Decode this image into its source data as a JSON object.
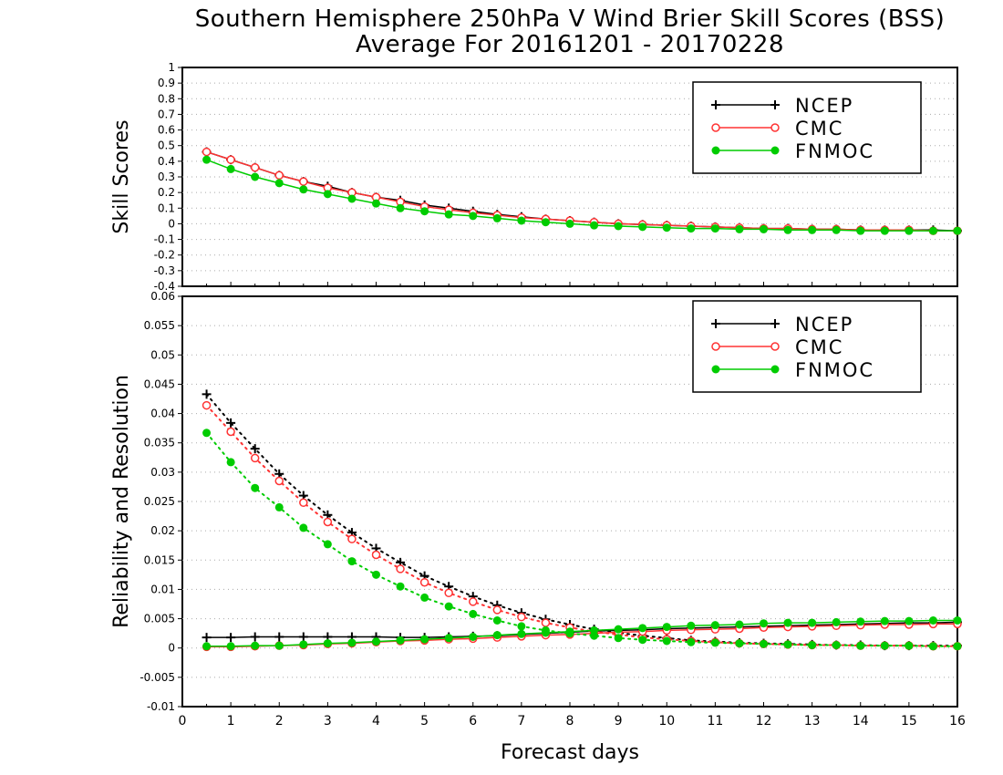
{
  "title_line1": "Southern Hemisphere 250hPa V Wind Brier Skill Scores (BSS)",
  "title_line2": "Average For 20161201 - 20170228",
  "chart_data": [
    {
      "type": "line",
      "ylabel": "Skill Scores",
      "xlabel": "",
      "xlim": [
        0,
        16
      ],
      "ylim": [
        -0.4,
        1
      ],
      "y_ticks": [
        1,
        0.9,
        0.8,
        0.7,
        0.6,
        0.5,
        0.4,
        0.3,
        0.2,
        0.1,
        0,
        -0.1,
        -0.2,
        -0.3,
        -0.4
      ],
      "grid": true,
      "legend_position": "top-right",
      "x": [
        0.5,
        1,
        1.5,
        2,
        2.5,
        3,
        3.5,
        4,
        4.5,
        5,
        5.5,
        6,
        6.5,
        7,
        7.5,
        8,
        8.5,
        9,
        9.5,
        10,
        10.5,
        11,
        11.5,
        12,
        12.5,
        13,
        13.5,
        14,
        14.5,
        15,
        15.5,
        16
      ],
      "series": [
        {
          "name": "NCEP",
          "color": "#000000",
          "marker": "plus",
          "style": "solid",
          "values": [
            0.46,
            0.41,
            0.36,
            0.31,
            0.27,
            0.24,
            0.2,
            0.17,
            0.15,
            0.12,
            0.1,
            0.08,
            0.06,
            0.045,
            0.03,
            0.02,
            0.01,
            0.0,
            -0.005,
            -0.01,
            -0.015,
            -0.02,
            -0.025,
            -0.03,
            -0.03,
            -0.035,
            -0.035,
            -0.04,
            -0.04,
            -0.04,
            -0.04,
            -0.045
          ]
        },
        {
          "name": "CMC",
          "color": "#ff3333",
          "marker": "open-circle",
          "style": "solid",
          "values": [
            0.46,
            0.41,
            0.36,
            0.31,
            0.27,
            0.23,
            0.2,
            0.17,
            0.14,
            0.11,
            0.09,
            0.07,
            0.055,
            0.04,
            0.03,
            0.02,
            0.01,
            0.0,
            -0.005,
            -0.01,
            -0.015,
            -0.02,
            -0.025,
            -0.03,
            -0.03,
            -0.035,
            -0.035,
            -0.04,
            -0.04,
            -0.04,
            -0.045,
            -0.045
          ]
        },
        {
          "name": "FNMOC",
          "color": "#00cc00",
          "marker": "filled-circle",
          "style": "solid",
          "values": [
            0.41,
            0.35,
            0.3,
            0.26,
            0.22,
            0.19,
            0.16,
            0.13,
            0.1,
            0.08,
            0.06,
            0.05,
            0.035,
            0.02,
            0.01,
            0.0,
            -0.01,
            -0.015,
            -0.02,
            -0.025,
            -0.03,
            -0.03,
            -0.035,
            -0.035,
            -0.04,
            -0.04,
            -0.04,
            -0.045,
            -0.045,
            -0.045,
            -0.045,
            -0.045
          ]
        }
      ]
    },
    {
      "type": "line",
      "ylabel": "Reliability and Resolution",
      "xlabel": "Forecast days",
      "xlim": [
        0,
        16
      ],
      "ylim": [
        -0.01,
        0.06
      ],
      "y_ticks": [
        0.06,
        0.055,
        0.05,
        0.045,
        0.04,
        0.035,
        0.03,
        0.025,
        0.02,
        0.015,
        0.01,
        0.005,
        0,
        -0.005,
        -0.01
      ],
      "x_ticks": [
        0,
        1,
        2,
        3,
        4,
        5,
        6,
        7,
        8,
        9,
        10,
        11,
        12,
        13,
        14,
        15,
        16
      ],
      "grid": true,
      "legend_position": "top-right",
      "x": [
        0.5,
        1,
        1.5,
        2,
        2.5,
        3,
        3.5,
        4,
        4.5,
        5,
        5.5,
        6,
        6.5,
        7,
        7.5,
        8,
        8.5,
        9,
        9.5,
        10,
        10.5,
        11,
        11.5,
        12,
        12.5,
        13,
        13.5,
        14,
        14.5,
        15,
        15.5,
        16
      ],
      "series": [
        {
          "name": "NCEP",
          "color": "#000000",
          "marker": "plus",
          "style": "dotted",
          "values": [
            0.0433,
            0.0384,
            0.034,
            0.0297,
            0.026,
            0.0227,
            0.0197,
            0.017,
            0.0146,
            0.0123,
            0.0105,
            0.0088,
            0.0073,
            0.006,
            0.0049,
            0.004,
            0.0032,
            0.0026,
            0.0021,
            0.0017,
            0.0013,
            0.0011,
            0.0009,
            0.0008,
            0.0007,
            0.0006,
            0.0005,
            0.0005,
            0.0004,
            0.0004,
            0.0004,
            0.0004
          ]
        },
        {
          "name": "NCEP",
          "color": "#000000",
          "marker": "plus",
          "style": "solid",
          "values": [
            0.0018,
            0.0018,
            0.0019,
            0.0019,
            0.0019,
            0.0019,
            0.0019,
            0.0019,
            0.0018,
            0.0018,
            0.0019,
            0.002,
            0.0021,
            0.0023,
            0.0025,
            0.0027,
            0.0029,
            0.003,
            0.0031,
            0.0033,
            0.0034,
            0.0035,
            0.0036,
            0.0037,
            0.0038,
            0.0039,
            0.004,
            0.0041,
            0.0042,
            0.0043,
            0.0043,
            0.0044
          ]
        },
        {
          "name": "CMC",
          "color": "#ff3333",
          "marker": "open-circle",
          "style": "dotted",
          "values": [
            0.0414,
            0.0369,
            0.0324,
            0.0285,
            0.0248,
            0.0215,
            0.0186,
            0.0159,
            0.0135,
            0.0112,
            0.0094,
            0.0079,
            0.0065,
            0.0053,
            0.0043,
            0.0035,
            0.0028,
            0.0023,
            0.0018,
            0.0015,
            0.0012,
            0.001,
            0.0008,
            0.0007,
            0.0006,
            0.0005,
            0.0005,
            0.0004,
            0.0004,
            0.0004,
            0.0003,
            0.0003
          ]
        },
        {
          "name": "CMC",
          "color": "#ff3333",
          "marker": "open-circle",
          "style": "solid",
          "values": [
            0.0002,
            0.0002,
            0.0003,
            0.0004,
            0.0005,
            0.0007,
            0.0008,
            0.001,
            0.0012,
            0.0013,
            0.0015,
            0.0016,
            0.0018,
            0.002,
            0.0022,
            0.0023,
            0.0025,
            0.0027,
            0.0028,
            0.003,
            0.0031,
            0.0032,
            0.0033,
            0.0035,
            0.0036,
            0.0037,
            0.0038,
            0.0039,
            0.004,
            0.004,
            0.0041,
            0.0041
          ]
        },
        {
          "name": "FNMOC",
          "color": "#00cc00",
          "marker": "filled-circle",
          "style": "dotted",
          "values": [
            0.0367,
            0.0317,
            0.0273,
            0.024,
            0.0205,
            0.0177,
            0.0148,
            0.0125,
            0.0105,
            0.0086,
            0.0071,
            0.0058,
            0.0047,
            0.0037,
            0.003,
            0.0025,
            0.0021,
            0.0017,
            0.0014,
            0.0012,
            0.001,
            0.0009,
            0.0008,
            0.0007,
            0.0006,
            0.0005,
            0.0005,
            0.0004,
            0.0004,
            0.0004,
            0.0003,
            0.0003
          ]
        },
        {
          "name": "FNMOC",
          "color": "#00cc00",
          "marker": "filled-circle",
          "style": "solid",
          "values": [
            0.0003,
            0.0003,
            0.0004,
            0.0004,
            0.0006,
            0.0008,
            0.0009,
            0.0011,
            0.0013,
            0.0015,
            0.0017,
            0.0019,
            0.0022,
            0.0024,
            0.0026,
            0.0028,
            0.003,
            0.0032,
            0.0034,
            0.0036,
            0.0038,
            0.0039,
            0.004,
            0.0042,
            0.0043,
            0.0043,
            0.0044,
            0.0045,
            0.0046,
            0.0046,
            0.0047,
            0.0047
          ]
        }
      ]
    }
  ],
  "legend_entries": [
    {
      "label": "NCEP",
      "color": "#000000",
      "marker": "plus"
    },
    {
      "label": "CMC",
      "color": "#ff3333",
      "marker": "open-circle"
    },
    {
      "label": "FNMOC",
      "color": "#00cc00",
      "marker": "filled-circle"
    }
  ]
}
